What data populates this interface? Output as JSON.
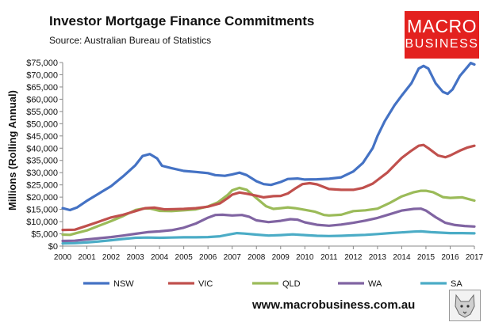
{
  "header": {
    "title": "Investor Mortgage Finance Commitments",
    "subtitle": "Source: Australian Bureau of Statistics"
  },
  "logo": {
    "line1": "MACRO",
    "line2": "BUSINESS",
    "color": "#e3211f"
  },
  "footer": {
    "url": "www.macrobusiness.com.au",
    "icon": "wolf-icon"
  },
  "chart_data": {
    "type": "line",
    "title": "Investor Mortgage Finance Commitments",
    "subtitle": "Source: Australian Bureau of Statistics",
    "ylabel": "Millions (Rolling Annual)",
    "xlabel": "",
    "ylim": [
      0,
      75000
    ],
    "xlim": [
      2000,
      2017
    ],
    "yticks": [
      "$0",
      "$5,000",
      "$10,000",
      "$15,000",
      "$20,000",
      "$25,000",
      "$30,000",
      "$35,000",
      "$40,000",
      "$45,000",
      "$50,000",
      "$55,000",
      "$60,000",
      "$65,000",
      "$70,000",
      "$75,000"
    ],
    "xticks": [
      "2000",
      "2001",
      "2002",
      "2003",
      "2004",
      "2005",
      "2006",
      "2007",
      "2008",
      "2009",
      "2010",
      "2011",
      "2012",
      "2013",
      "2014",
      "2015",
      "2016",
      "2017"
    ],
    "grid": false,
    "legend": "bottom",
    "series": [
      {
        "name": "NSW",
        "color": "#4472c4",
        "points": [
          [
            2000,
            15500
          ],
          [
            2000.3,
            14700
          ],
          [
            2000.6,
            15800
          ],
          [
            2001,
            18500
          ],
          [
            2001.5,
            21500
          ],
          [
            2002,
            24500
          ],
          [
            2002.5,
            28500
          ],
          [
            2003,
            33000
          ],
          [
            2003.3,
            36800
          ],
          [
            2003.6,
            37600
          ],
          [
            2003.9,
            35800
          ],
          [
            2004.1,
            32800
          ],
          [
            2004.5,
            31800
          ],
          [
            2005,
            30700
          ],
          [
            2005.5,
            30300
          ],
          [
            2006,
            29800
          ],
          [
            2006.3,
            29000
          ],
          [
            2006.7,
            28700
          ],
          [
            2007,
            29300
          ],
          [
            2007.3,
            30000
          ],
          [
            2007.6,
            29000
          ],
          [
            2008,
            26500
          ],
          [
            2008.3,
            25300
          ],
          [
            2008.6,
            25000
          ],
          [
            2009,
            26200
          ],
          [
            2009.3,
            27400
          ],
          [
            2009.7,
            27600
          ],
          [
            2010,
            27200
          ],
          [
            2010.5,
            27300
          ],
          [
            2011,
            27500
          ],
          [
            2011.5,
            28100
          ],
          [
            2012,
            30500
          ],
          [
            2012.4,
            34000
          ],
          [
            2012.8,
            40000
          ],
          [
            2013,
            45000
          ],
          [
            2013.3,
            51000
          ],
          [
            2013.7,
            57500
          ],
          [
            2014,
            61500
          ],
          [
            2014.4,
            66500
          ],
          [
            2014.7,
            72500
          ],
          [
            2014.9,
            73600
          ],
          [
            2015.1,
            72500
          ],
          [
            2015.4,
            66500
          ],
          [
            2015.7,
            63000
          ],
          [
            2015.9,
            62200
          ],
          [
            2016.1,
            64000
          ],
          [
            2016.4,
            69500
          ],
          [
            2016.7,
            73000
          ],
          [
            2016.85,
            74800
          ],
          [
            2017,
            74200
          ]
        ]
      },
      {
        "name": "VIC",
        "color": "#c0504d",
        "points": [
          [
            2000,
            6600
          ],
          [
            2000.5,
            6700
          ],
          [
            2001,
            8300
          ],
          [
            2001.5,
            10000
          ],
          [
            2002,
            11700
          ],
          [
            2002.5,
            12800
          ],
          [
            2003,
            14300
          ],
          [
            2003.4,
            15500
          ],
          [
            2003.8,
            15700
          ],
          [
            2004.2,
            15000
          ],
          [
            2004.6,
            15100
          ],
          [
            2005,
            15200
          ],
          [
            2005.5,
            15500
          ],
          [
            2006,
            16100
          ],
          [
            2006.5,
            17500
          ],
          [
            2006.8,
            19500
          ],
          [
            2007,
            21000
          ],
          [
            2007.3,
            21900
          ],
          [
            2007.6,
            21400
          ],
          [
            2008,
            20600
          ],
          [
            2008.3,
            19900
          ],
          [
            2008.7,
            20400
          ],
          [
            2009,
            20500
          ],
          [
            2009.3,
            21500
          ],
          [
            2009.6,
            23500
          ],
          [
            2009.9,
            25300
          ],
          [
            2010.2,
            25700
          ],
          [
            2010.5,
            25200
          ],
          [
            2011,
            23300
          ],
          [
            2011.5,
            23000
          ],
          [
            2012,
            23000
          ],
          [
            2012.4,
            23800
          ],
          [
            2012.8,
            25500
          ],
          [
            2013,
            27000
          ],
          [
            2013.4,
            30000
          ],
          [
            2013.8,
            34000
          ],
          [
            2014,
            36000
          ],
          [
            2014.4,
            39000
          ],
          [
            2014.7,
            41000
          ],
          [
            2014.9,
            41300
          ],
          [
            2015.1,
            40000
          ],
          [
            2015.5,
            37000
          ],
          [
            2015.8,
            36300
          ],
          [
            2016,
            37000
          ],
          [
            2016.4,
            39000
          ],
          [
            2016.7,
            40200
          ],
          [
            2017,
            41000
          ]
        ]
      },
      {
        "name": "QLD",
        "color": "#9bbb59",
        "points": [
          [
            2000,
            4700
          ],
          [
            2000.3,
            4600
          ],
          [
            2000.6,
            5400
          ],
          [
            2001,
            6400
          ],
          [
            2001.5,
            8300
          ],
          [
            2002,
            10200
          ],
          [
            2002.5,
            12300
          ],
          [
            2003,
            14700
          ],
          [
            2003.3,
            15300
          ],
          [
            2003.6,
            15400
          ],
          [
            2004,
            14400
          ],
          [
            2004.5,
            14300
          ],
          [
            2005,
            14600
          ],
          [
            2005.5,
            15000
          ],
          [
            2006,
            16200
          ],
          [
            2006.4,
            17800
          ],
          [
            2006.8,
            20800
          ],
          [
            2007,
            22800
          ],
          [
            2007.3,
            23800
          ],
          [
            2007.6,
            23000
          ],
          [
            2008,
            19600
          ],
          [
            2008.4,
            16300
          ],
          [
            2008.7,
            15200
          ],
          [
            2009,
            15500
          ],
          [
            2009.3,
            15800
          ],
          [
            2009.6,
            15500
          ],
          [
            2010,
            14800
          ],
          [
            2010.4,
            14100
          ],
          [
            2010.8,
            12700
          ],
          [
            2011,
            12500
          ],
          [
            2011.5,
            12800
          ],
          [
            2012,
            14300
          ],
          [
            2012.5,
            14600
          ],
          [
            2013,
            15300
          ],
          [
            2013.5,
            17600
          ],
          [
            2014,
            20300
          ],
          [
            2014.5,
            22000
          ],
          [
            2014.8,
            22600
          ],
          [
            2015,
            22600
          ],
          [
            2015.3,
            22000
          ],
          [
            2015.7,
            20000
          ],
          [
            2016,
            19700
          ],
          [
            2016.5,
            19900
          ],
          [
            2017,
            18600
          ]
        ]
      },
      {
        "name": "WA",
        "color": "#8064a2",
        "points": [
          [
            2000,
            2100
          ],
          [
            2000.5,
            2200
          ],
          [
            2001,
            2700
          ],
          [
            2001.5,
            3200
          ],
          [
            2002,
            3700
          ],
          [
            2002.5,
            4300
          ],
          [
            2003,
            5000
          ],
          [
            2003.5,
            5700
          ],
          [
            2004,
            6000
          ],
          [
            2004.5,
            6500
          ],
          [
            2005,
            7500
          ],
          [
            2005.5,
            9200
          ],
          [
            2006,
            11600
          ],
          [
            2006.3,
            12700
          ],
          [
            2006.6,
            12800
          ],
          [
            2007,
            12500
          ],
          [
            2007.4,
            12700
          ],
          [
            2007.7,
            12000
          ],
          [
            2008,
            10500
          ],
          [
            2008.5,
            9800
          ],
          [
            2009,
            10300
          ],
          [
            2009.4,
            11000
          ],
          [
            2009.7,
            10800
          ],
          [
            2010,
            9700
          ],
          [
            2010.5,
            8700
          ],
          [
            2011,
            8300
          ],
          [
            2011.5,
            8800
          ],
          [
            2012,
            9500
          ],
          [
            2012.5,
            10400
          ],
          [
            2013,
            11500
          ],
          [
            2013.5,
            13000
          ],
          [
            2014,
            14500
          ],
          [
            2014.5,
            15200
          ],
          [
            2014.8,
            15300
          ],
          [
            2015,
            14500
          ],
          [
            2015.4,
            11800
          ],
          [
            2015.8,
            9500
          ],
          [
            2016.2,
            8600
          ],
          [
            2016.6,
            8200
          ],
          [
            2017,
            8000
          ]
        ]
      },
      {
        "name": "SA",
        "color": "#4bacc6",
        "points": [
          [
            2000,
            1100
          ],
          [
            2000.5,
            1200
          ],
          [
            2001,
            1500
          ],
          [
            2001.5,
            1900
          ],
          [
            2002,
            2400
          ],
          [
            2002.5,
            2900
          ],
          [
            2003,
            3400
          ],
          [
            2003.5,
            3500
          ],
          [
            2004,
            3400
          ],
          [
            2004.5,
            3500
          ],
          [
            2005,
            3600
          ],
          [
            2005.5,
            3600
          ],
          [
            2006,
            3700
          ],
          [
            2006.5,
            4000
          ],
          [
            2006.9,
            4800
          ],
          [
            2007.2,
            5300
          ],
          [
            2007.5,
            5100
          ],
          [
            2008,
            4700
          ],
          [
            2008.5,
            4300
          ],
          [
            2009,
            4500
          ],
          [
            2009.5,
            4800
          ],
          [
            2010,
            4500
          ],
          [
            2010.5,
            4200
          ],
          [
            2011,
            4100
          ],
          [
            2011.5,
            4200
          ],
          [
            2012,
            4400
          ],
          [
            2012.5,
            4600
          ],
          [
            2013,
            4900
          ],
          [
            2013.5,
            5300
          ],
          [
            2014,
            5600
          ],
          [
            2014.5,
            5900
          ],
          [
            2014.8,
            6000
          ],
          [
            2015.2,
            5700
          ],
          [
            2015.6,
            5500
          ],
          [
            2016,
            5300
          ],
          [
            2016.5,
            5300
          ],
          [
            2017,
            5200
          ]
        ]
      }
    ]
  }
}
